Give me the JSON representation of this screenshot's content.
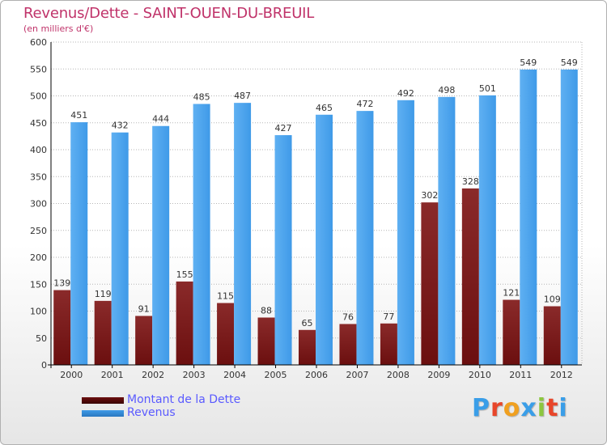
{
  "title": "Revenus/Dette - SAINT-OUEN-DU-BREUIL",
  "subtitle": "(en milliers d'€)",
  "colors": {
    "dette": "#6b0f0f",
    "revenus": "#3f9ae8",
    "title": "#c0336a",
    "legend_text": "#5a5aff",
    "grid": "#b5b5b5"
  },
  "chart_data": {
    "type": "bar",
    "categories": [
      "2000",
      "2001",
      "2002",
      "2003",
      "2004",
      "2005",
      "2006",
      "2007",
      "2008",
      "2009",
      "2010",
      "2011",
      "2012"
    ],
    "series": [
      {
        "name": "Montant de la Dette",
        "values": [
          139,
          119,
          91,
          155,
          115,
          88,
          65,
          76,
          77,
          302,
          328,
          121,
          109
        ]
      },
      {
        "name": "Revenus",
        "values": [
          451,
          432,
          444,
          485,
          487,
          427,
          465,
          472,
          492,
          498,
          501,
          549,
          549
        ]
      }
    ],
    "ylim": [
      0,
      600
    ],
    "yticks": [
      0,
      50,
      100,
      150,
      200,
      250,
      300,
      350,
      400,
      450,
      500,
      550,
      600
    ],
    "grid": true,
    "legend_position": "bottom-left"
  },
  "legend": {
    "items": [
      "Montant de la Dette",
      "Revenus"
    ]
  },
  "brand": {
    "letters": [
      "P",
      "r",
      "o",
      "x",
      "i",
      "t",
      "i"
    ],
    "letter_colors": [
      "#3a9ee8",
      "#e8462a",
      "#f0a020",
      "#3a9ee8",
      "#8cc63f",
      "#e8462a",
      "#3a9ee8"
    ]
  }
}
